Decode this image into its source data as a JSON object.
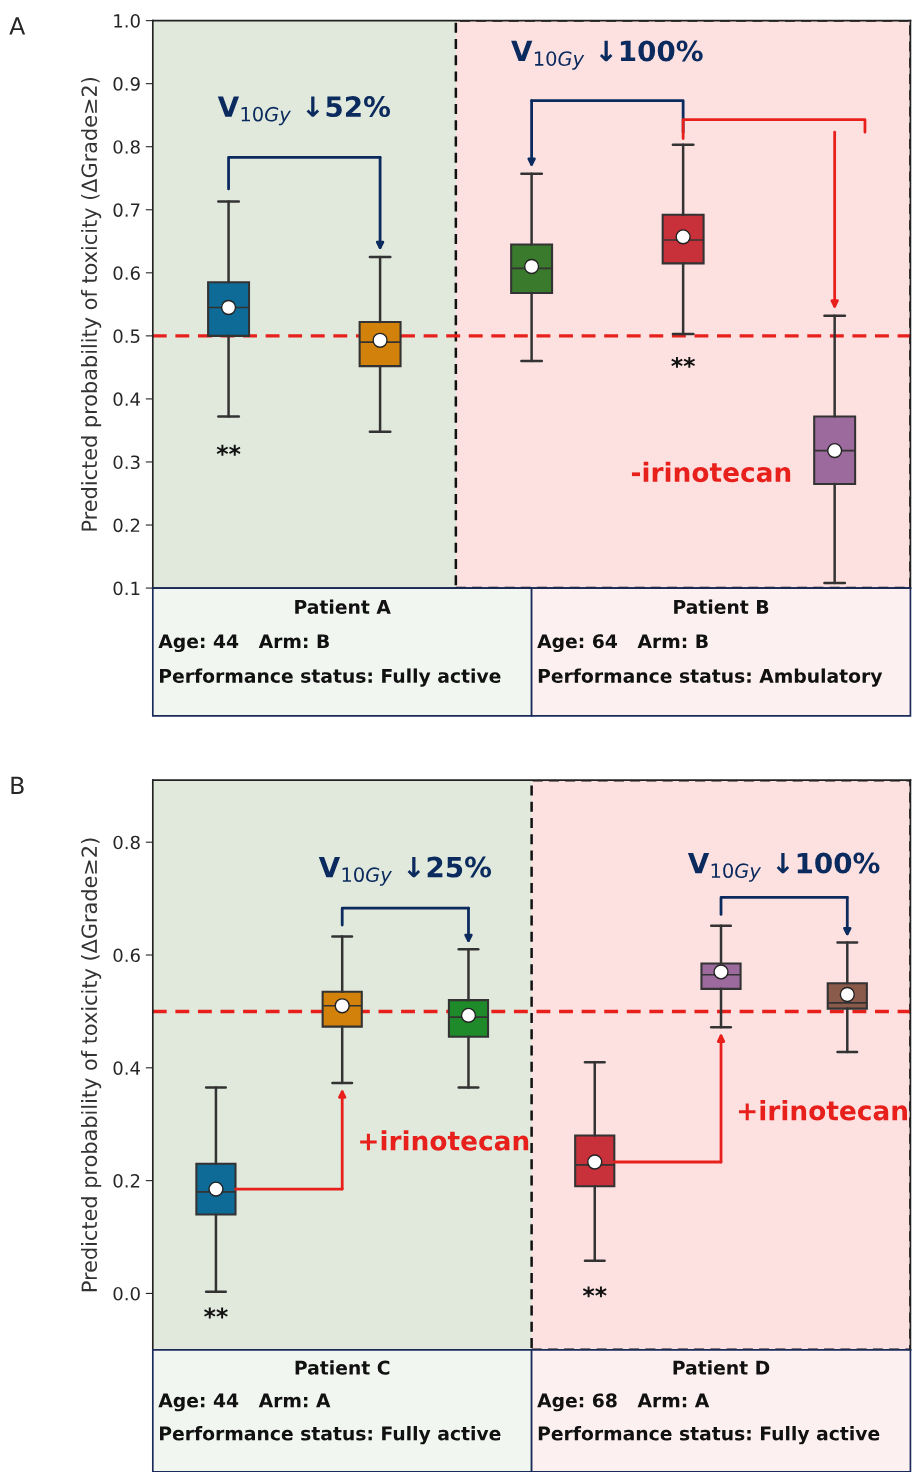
{
  "chart_data": [
    {
      "type": "box",
      "title": "A",
      "ylabel": "Predicted probability of toxicity (ΔGrade≥2)",
      "categories": [
        null,
        null,
        null,
        null,
        null
      ],
      "ylim": [
        0.1,
        1.0
      ],
      "yticks": [
        0.1,
        0.2,
        0.3,
        0.4,
        0.5,
        0.6,
        0.7,
        0.8,
        0.9,
        {
          "value": 1.0,
          "label": "1.0"
        }
      ],
      "tick_labels": "y",
      "grid": false,
      "colors": [
        "#0e6a96",
        "#d2820a",
        "#3a7a2c",
        "#c8303a",
        "#9c6a9c"
      ],
      "boxes": [
        {
          "low": 0.372,
          "q1": 0.5,
          "median": 0.545,
          "q3": 0.585,
          "high": 0.713,
          "mean": 0.545
        },
        {
          "low": 0.348,
          "q1": 0.452,
          "median": 0.49,
          "q3": 0.522,
          "high": 0.625,
          "mean": 0.493
        },
        {
          "low": 0.46,
          "q1": 0.568,
          "median": 0.607,
          "q3": 0.645,
          "high": 0.757,
          "mean": 0.61
        },
        {
          "low": 0.503,
          "q1": 0.615,
          "median": 0.652,
          "q3": 0.692,
          "high": 0.803,
          "mean": 0.657
        },
        {
          "low": 0.108,
          "q1": 0.265,
          "median": 0.318,
          "q3": 0.372,
          "high": 0.532,
          "mean": 0.318
        }
      ],
      "ref_lines": [
        {
          "axis": "y",
          "value": 0.5,
          "color": "#e8201c",
          "line_style": "dashed"
        }
      ],
      "annotations": [
        "V$_{10Gy}$ ↓52%",
        "**",
        "V$_{10Gy}$ ↓100%",
        "-irinotecan",
        "**",
        "Patient A",
        "Age: 44   Arm: B",
        "Performance status: Fully active",
        "Patient B",
        "Age: 64   Arm: B",
        "Performance status: Ambulatory"
      ]
    },
    {
      "type": "box",
      "title": "B",
      "ylabel": "Predicted probability of toxicity (ΔGrade≥2)",
      "categories": [
        null,
        null,
        null,
        null,
        null,
        null
      ],
      "ylim": [
        -0.1,
        0.91
      ],
      "yticks": [
        {
          "value": 0,
          "label": "0.0"
        },
        0.2,
        0.4,
        0.6,
        0.8
      ],
      "tick_labels": "y",
      "grid": false,
      "colors": [
        "#0e6a96",
        "#d2820a",
        "#1f8a2a",
        "#c8303a",
        "#9c6a9c",
        "#8a5a4a"
      ],
      "boxes": [
        {
          "low": 0.003,
          "q1": 0.14,
          "median": 0.18,
          "q3": 0.23,
          "high": 0.365,
          "mean": 0.185
        },
        {
          "low": 0.373,
          "q1": 0.473,
          "median": 0.51,
          "q3": 0.535,
          "high": 0.633,
          "mean": 0.51
        },
        {
          "low": 0.365,
          "q1": 0.455,
          "median": 0.49,
          "q3": 0.52,
          "high": 0.61,
          "mean": 0.493
        },
        {
          "low": 0.058,
          "q1": 0.19,
          "median": 0.228,
          "q3": 0.28,
          "high": 0.41,
          "mean": 0.233
        },
        {
          "low": 0.472,
          "q1": 0.54,
          "median": 0.565,
          "q3": 0.585,
          "high": 0.652,
          "mean": 0.57
        },
        {
          "low": 0.428,
          "q1": 0.505,
          "median": 0.515,
          "q3": 0.55,
          "high": 0.622,
          "mean": 0.53
        }
      ],
      "ref_lines": [
        {
          "axis": "y",
          "value": 0.5,
          "color": "#e8201c",
          "line_style": "dashed"
        }
      ],
      "annotations": [
        "V$_{10Gy}$ ↓25%",
        "+irinotecan",
        "**",
        "V$_{10Gy}$ ↓100%",
        "+irinotecan",
        "**",
        "Patient C",
        "Age: 44   Arm: A",
        "Performance status: Fully active",
        "Patient D",
        "Age: 68   Arm: A",
        "Performance status: Fully active"
      ]
    }
  ]
}
